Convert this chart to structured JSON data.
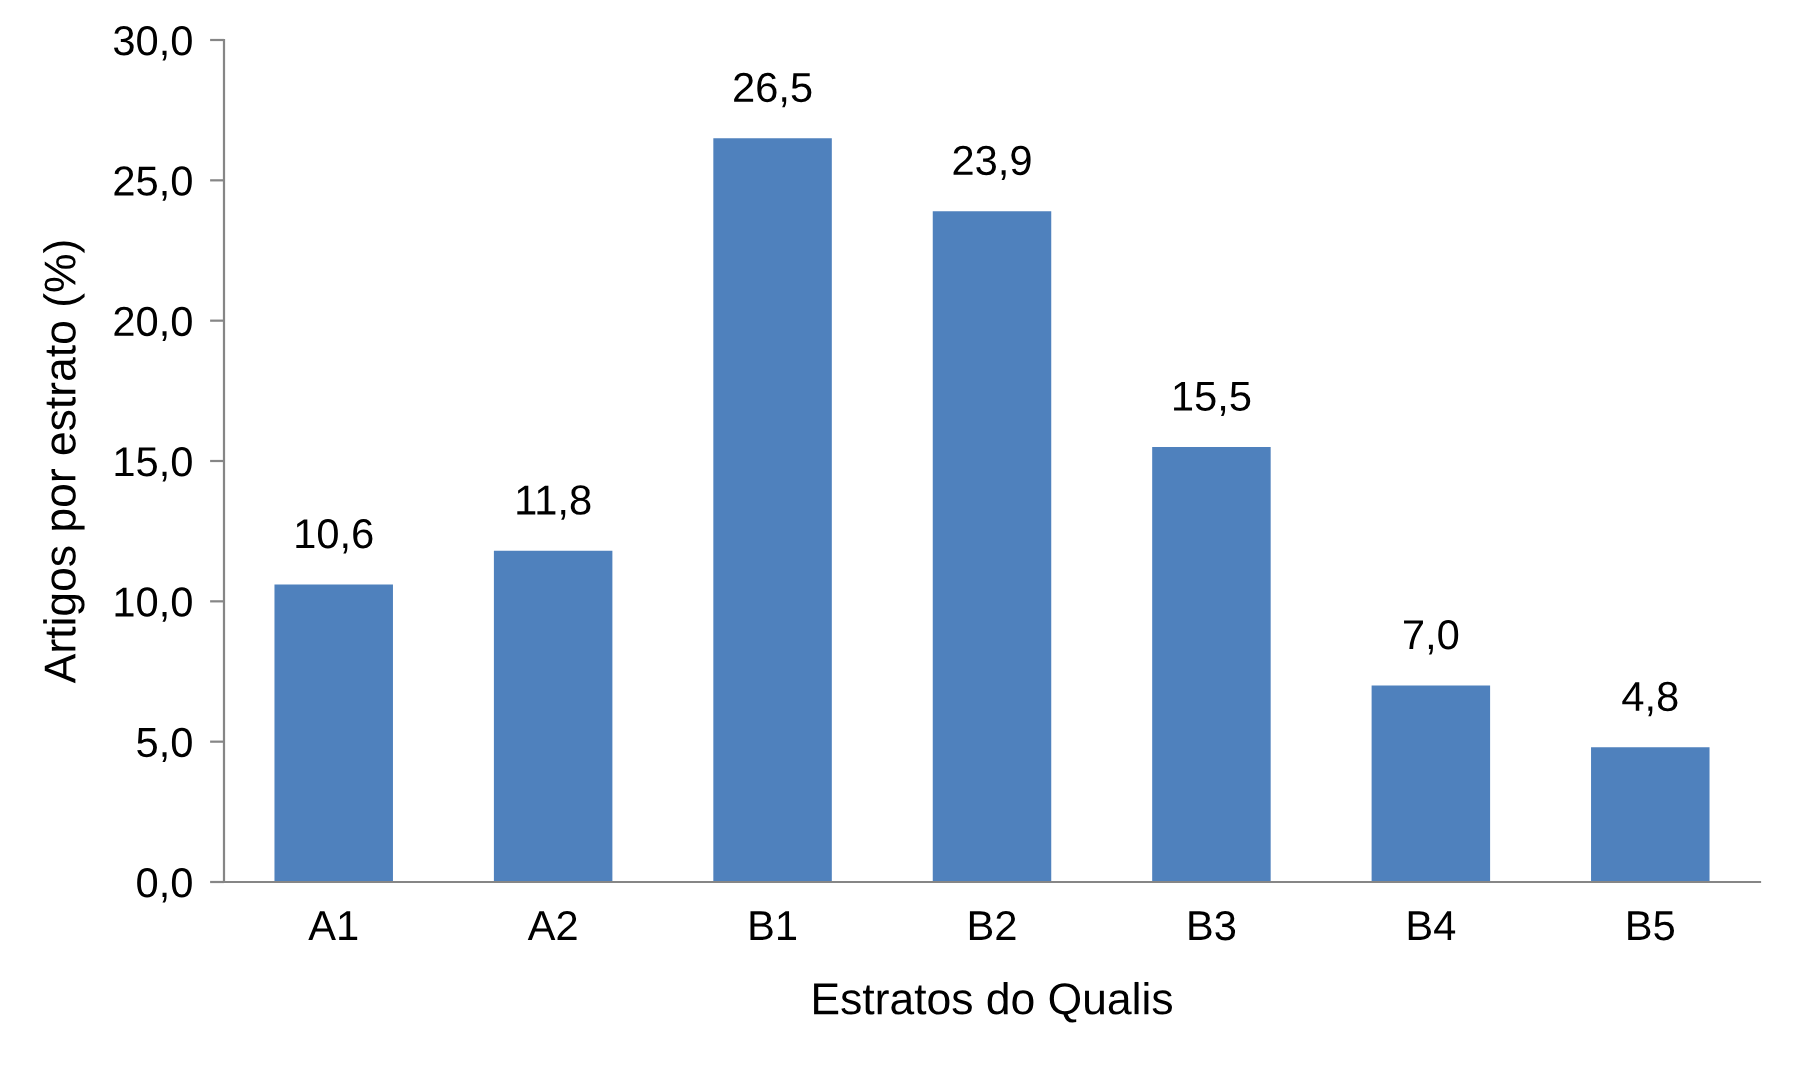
{
  "chart_data": {
    "type": "bar",
    "xlabel": "Estratos do Qualis",
    "ylabel": "Artigos por estrato (%)",
    "categories": [
      "A1",
      "A2",
      "B1",
      "B2",
      "B3",
      "B4",
      "B5"
    ],
    "values": [
      10.6,
      11.8,
      26.5,
      23.9,
      15.5,
      7.0,
      4.8
    ],
    "value_labels": [
      "10,6",
      "11,8",
      "26,5",
      "23,9",
      "15,5",
      "7,0",
      "4,8"
    ],
    "color": "#4f81bd",
    "ylim": [
      0,
      30
    ],
    "yticks": [
      {
        "value": 0,
        "label": "0,0"
      },
      {
        "value": 5,
        "label": "5,0"
      },
      {
        "value": 10,
        "label": "10,0"
      },
      {
        "value": 15,
        "label": "15,0"
      },
      {
        "value": 20,
        "label": "20,0"
      },
      {
        "value": 25,
        "label": "25,0"
      },
      {
        "value": 30,
        "label": "30,0"
      }
    ],
    "grid": false,
    "legend": false
  }
}
